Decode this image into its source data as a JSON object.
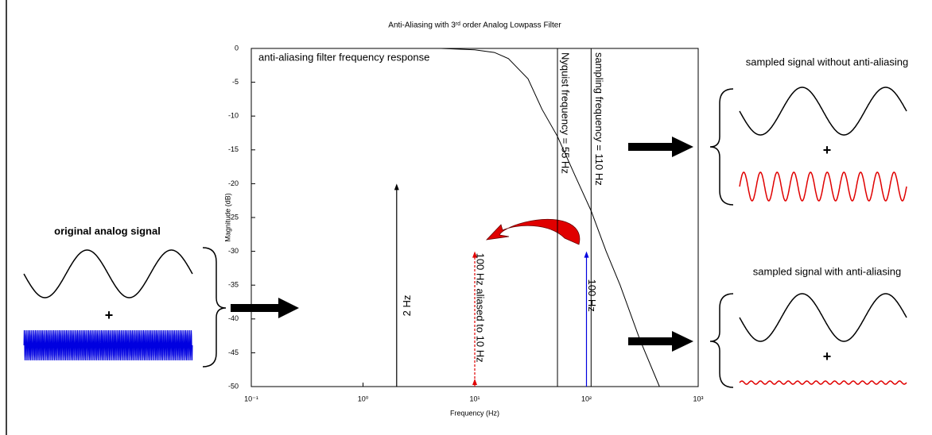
{
  "chart_data": {
    "type": "line",
    "title": "Anti-Aliasing with 3ʳᵈ order Analog Lowpass Filter",
    "xlabel": "Frequency (Hz)",
    "ylabel": "Magnitude (dB)",
    "annotation": "anti-aliasing filter frequency response",
    "log_x": true,
    "color": "#000000",
    "x": [
      0.1,
      1,
      5,
      10,
      15,
      20,
      30,
      40,
      55,
      80,
      110,
      150,
      200,
      300,
      450
    ],
    "values": [
      0,
      0,
      0,
      -0.2,
      -0.6,
      -1.5,
      -4.5,
      -9,
      -13,
      -19,
      -24,
      -30,
      -35,
      -43,
      -50
    ],
    "xlim": [
      0.1,
      1000
    ],
    "ylim": [
      -50,
      0
    ],
    "xticks": [
      {
        "value": 0.1,
        "label": "10⁻¹"
      },
      {
        "value": 1,
        "label": "10⁰"
      },
      {
        "value": 10,
        "label": "10¹"
      },
      {
        "value": 100,
        "label": "10²"
      },
      {
        "value": 1000,
        "label": "10³"
      }
    ],
    "yticks": [
      0,
      -5,
      -10,
      -15,
      -20,
      -25,
      -30,
      -35,
      -40,
      -45,
      -50
    ],
    "markers": [
      {
        "x": 55,
        "label": "Nyquist frequency = 55 Hz"
      },
      {
        "x": 110,
        "label": "sampling frequency = 110 Hz"
      }
    ],
    "stems": [
      {
        "x": 2,
        "value": -20,
        "color": "#000000",
        "label": "2 Hz"
      },
      {
        "x": 10,
        "value": -30,
        "color": "#e00000",
        "label": "100 Hz aliased to 10 Hz"
      },
      {
        "x": 100,
        "value": -30,
        "color": "#0000e0",
        "label": "100 Hz"
      }
    ]
  },
  "diagram": {
    "original_title": "original analog signal",
    "original_plus": "+",
    "without_title": "sampled signal without anti-aliasing",
    "without_plus": "+",
    "with_title": "sampled signal with anti-aliasing",
    "with_plus": "+"
  }
}
